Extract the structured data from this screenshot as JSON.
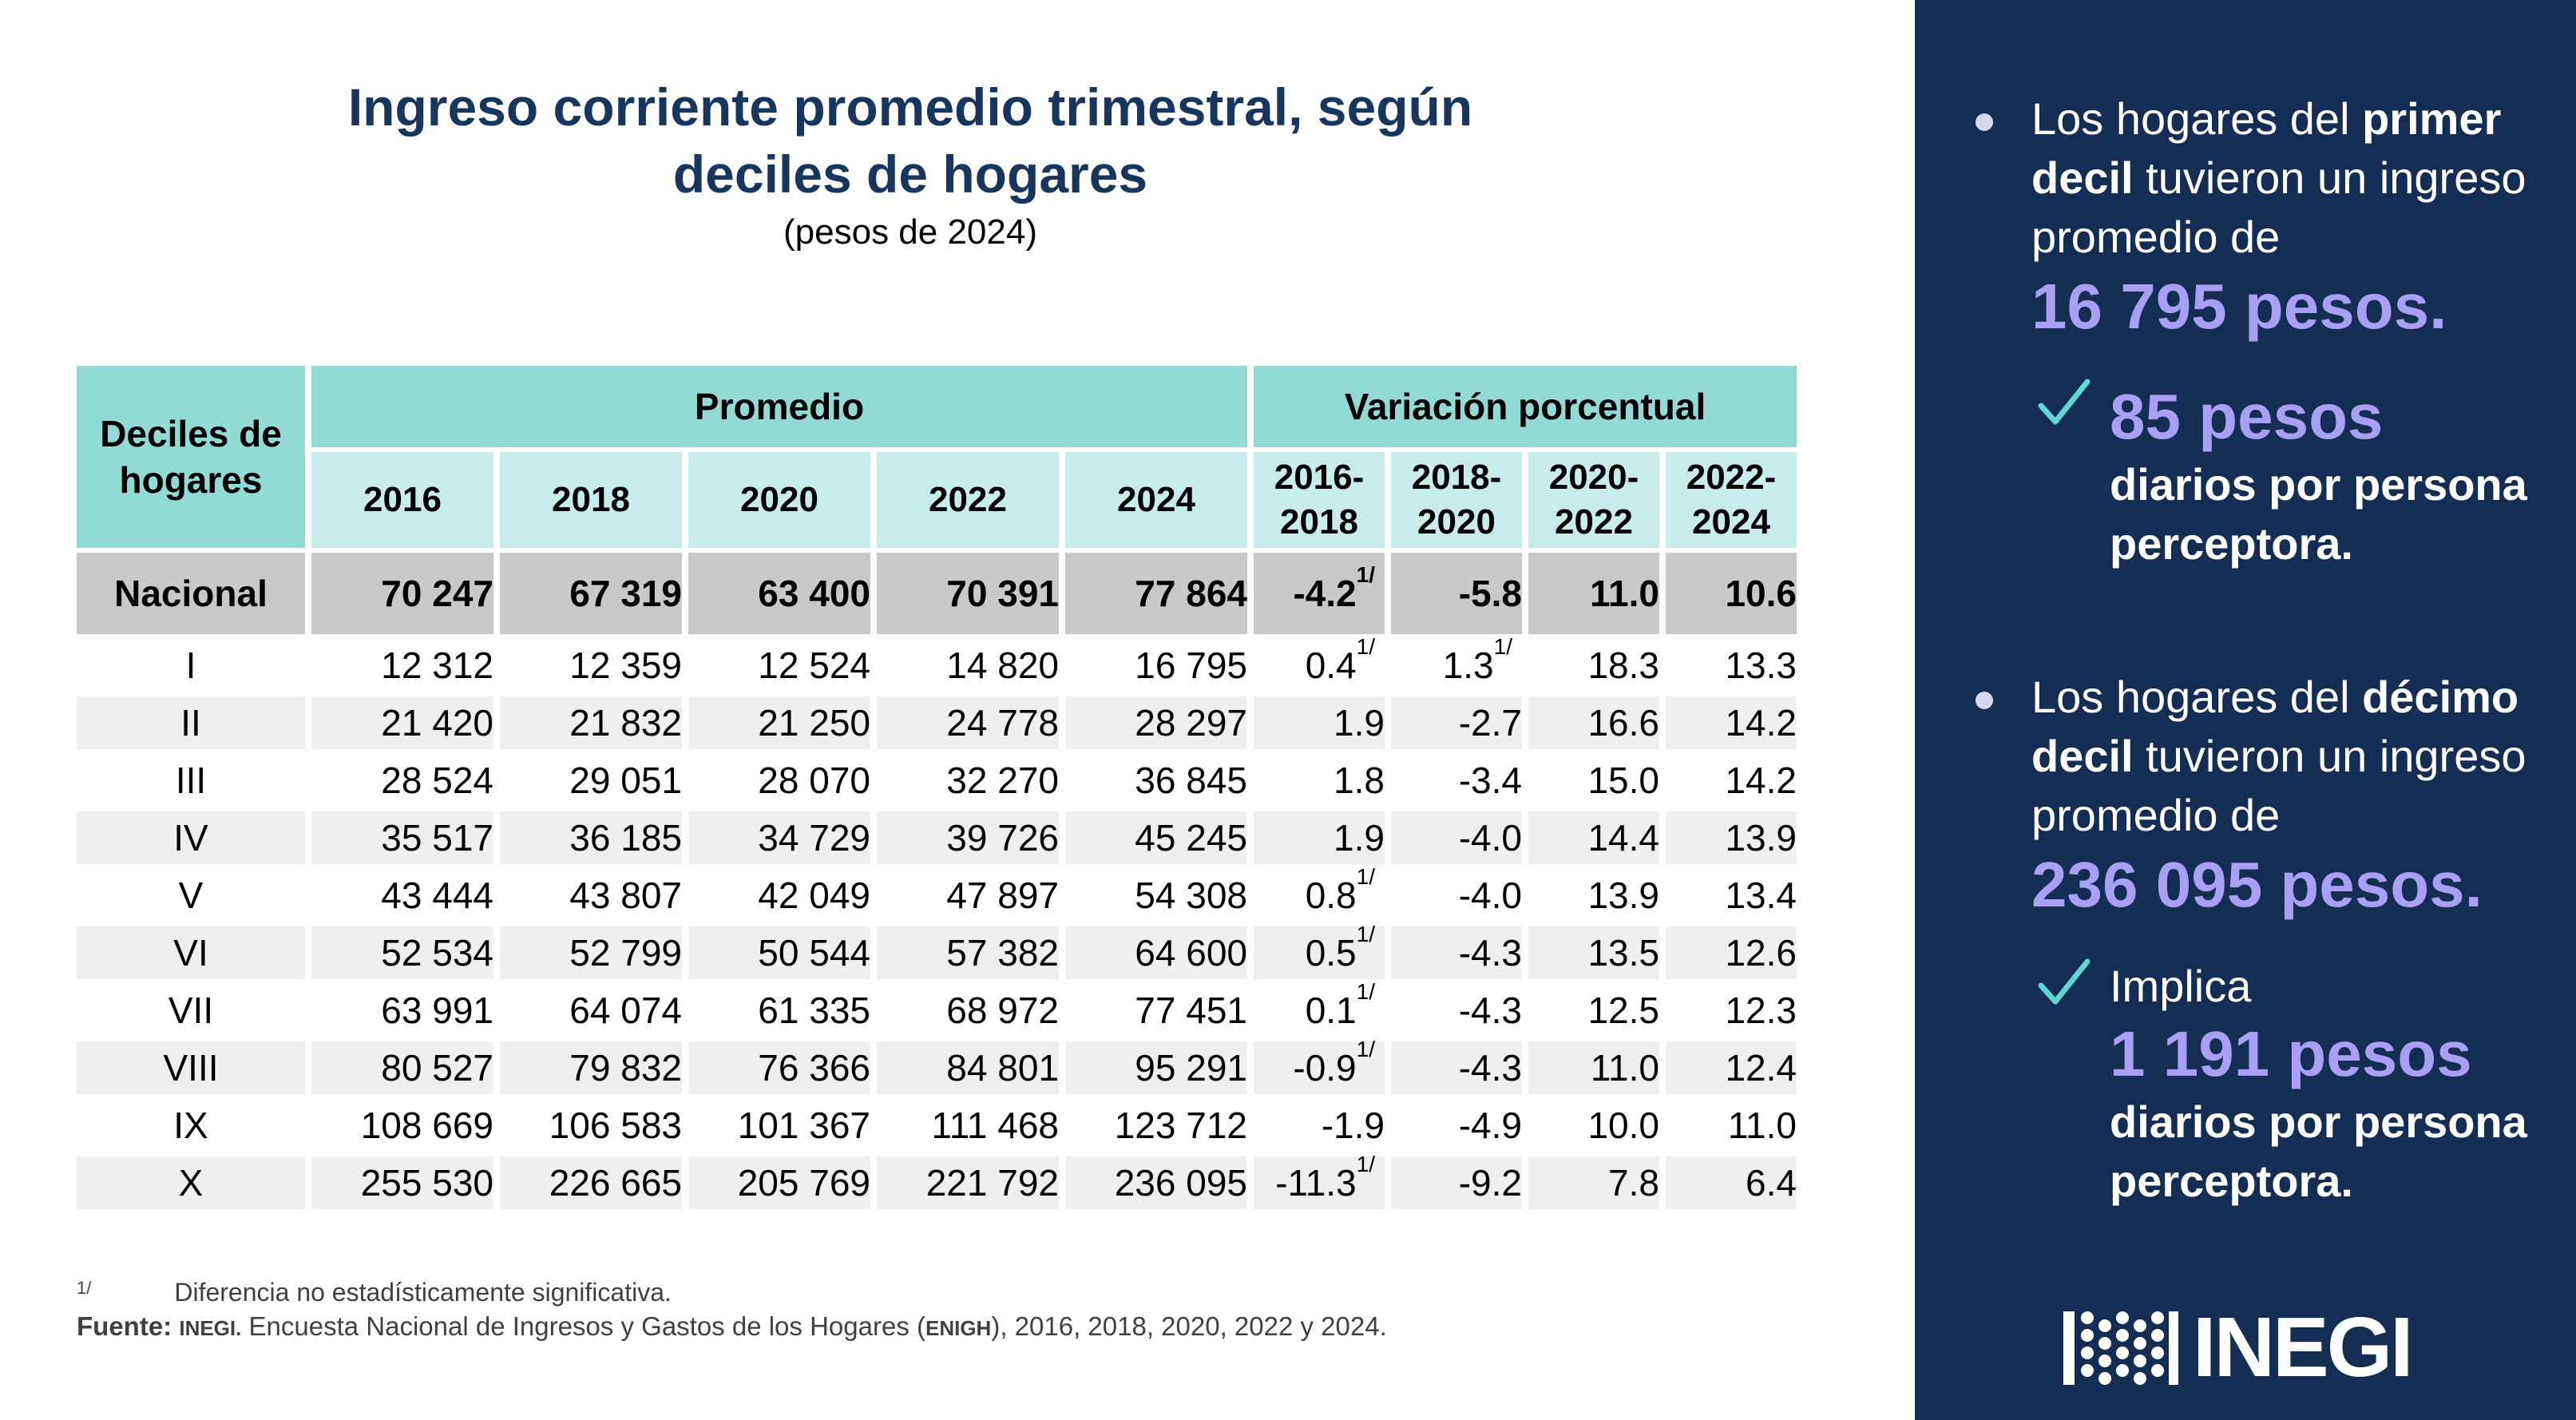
{
  "title": {
    "line1": "Ingreso corriente promedio trimestral, según",
    "line2": "deciles de hogares",
    "subtitle": "(pesos de 2024)"
  },
  "table": {
    "stub_header": "Deciles de hogares",
    "group_promedio": "Promedio",
    "group_variacion": "Variación porcentual",
    "years": [
      "2016",
      "2018",
      "2020",
      "2022",
      "2024"
    ],
    "periods": [
      "2016-\n2018",
      "2018-\n2020",
      "2020-\n2022",
      "2022-\n2024"
    ],
    "national": {
      "label": "Nacional",
      "values": [
        "70 247",
        "67 319",
        "63 400",
        "70 391",
        "77 864"
      ],
      "variations": [
        {
          "v": "-4.2",
          "note": "1/"
        },
        {
          "v": "-5.8",
          "note": ""
        },
        {
          "v": "11.0",
          "note": ""
        },
        {
          "v": "10.6",
          "note": ""
        }
      ]
    },
    "rows": [
      {
        "label": "I",
        "values": [
          "12 312",
          "12 359",
          "12 524",
          "14 820",
          "16 795"
        ],
        "variations": [
          {
            "v": "0.4",
            "note": "1/"
          },
          {
            "v": "1.3",
            "note": "1/"
          },
          {
            "v": "18.3",
            "note": ""
          },
          {
            "v": "13.3",
            "note": ""
          }
        ]
      },
      {
        "label": "II",
        "values": [
          "21 420",
          "21 832",
          "21 250",
          "24 778",
          "28 297"
        ],
        "variations": [
          {
            "v": "1.9",
            "note": ""
          },
          {
            "v": "-2.7",
            "note": ""
          },
          {
            "v": "16.6",
            "note": ""
          },
          {
            "v": "14.2",
            "note": ""
          }
        ]
      },
      {
        "label": "III",
        "values": [
          "28 524",
          "29 051",
          "28 070",
          "32 270",
          "36 845"
        ],
        "variations": [
          {
            "v": "1.8",
            "note": ""
          },
          {
            "v": "-3.4",
            "note": ""
          },
          {
            "v": "15.0",
            "note": ""
          },
          {
            "v": "14.2",
            "note": ""
          }
        ]
      },
      {
        "label": "IV",
        "values": [
          "35 517",
          "36 185",
          "34 729",
          "39 726",
          "45 245"
        ],
        "variations": [
          {
            "v": "1.9",
            "note": ""
          },
          {
            "v": "-4.0",
            "note": ""
          },
          {
            "v": "14.4",
            "note": ""
          },
          {
            "v": "13.9",
            "note": ""
          }
        ]
      },
      {
        "label": "V",
        "values": [
          "43 444",
          "43 807",
          "42 049",
          "47 897",
          "54 308"
        ],
        "variations": [
          {
            "v": "0.8",
            "note": "1/"
          },
          {
            "v": "-4.0",
            "note": ""
          },
          {
            "v": "13.9",
            "note": ""
          },
          {
            "v": "13.4",
            "note": ""
          }
        ]
      },
      {
        "label": "VI",
        "values": [
          "52 534",
          "52 799",
          "50 544",
          "57 382",
          "64 600"
        ],
        "variations": [
          {
            "v": "0.5",
            "note": "1/"
          },
          {
            "v": "-4.3",
            "note": ""
          },
          {
            "v": "13.5",
            "note": ""
          },
          {
            "v": "12.6",
            "note": ""
          }
        ]
      },
      {
        "label": "VII",
        "values": [
          "63 991",
          "64 074",
          "61 335",
          "68 972",
          "77 451"
        ],
        "variations": [
          {
            "v": "0.1",
            "note": "1/"
          },
          {
            "v": "-4.3",
            "note": ""
          },
          {
            "v": "12.5",
            "note": ""
          },
          {
            "v": "12.3",
            "note": ""
          }
        ]
      },
      {
        "label": "VIII",
        "values": [
          "80 527",
          "79 832",
          "76 366",
          "84 801",
          "95 291"
        ],
        "variations": [
          {
            "v": "-0.9",
            "note": "1/"
          },
          {
            "v": "-4.3",
            "note": ""
          },
          {
            "v": "11.0",
            "note": ""
          },
          {
            "v": "12.4",
            "note": ""
          }
        ]
      },
      {
        "label": "IX",
        "values": [
          "108 669",
          "106 583",
          "101 367",
          "111 468",
          "123 712"
        ],
        "variations": [
          {
            "v": "-1.9",
            "note": ""
          },
          {
            "v": "-4.9",
            "note": ""
          },
          {
            "v": "10.0",
            "note": ""
          },
          {
            "v": "11.0",
            "note": ""
          }
        ]
      },
      {
        "label": "X",
        "values": [
          "255 530",
          "226 665",
          "205 769",
          "221 792",
          "236 095"
        ],
        "variations": [
          {
            "v": "-11.3",
            "note": "1/"
          },
          {
            "v": "-9.2",
            "note": ""
          },
          {
            "v": "7.8",
            "note": ""
          },
          {
            "v": "6.4",
            "note": ""
          }
        ]
      }
    ]
  },
  "footnotes": {
    "mark": "1/",
    "note_text": "Diferencia no estadísticamente significativa.",
    "source_label": "Fuente:",
    "source_org": "INEGI.",
    "source_text_a": " Encuesta Nacional de Ingresos y Gastos de los Hogares (",
    "source_abbr": "ENIGH",
    "source_text_b": "), 2016, 2018, 2020, 2022 y 2024."
  },
  "side": {
    "bullet1": {
      "pre": "Los hogares del ",
      "bold": "primer decil",
      "post": " tuvieron un ingreso promedio de",
      "highlight": "16 795 pesos."
    },
    "check1": {
      "lead": "85 pesos",
      "text": "diarios por persona perceptora."
    },
    "bullet2": {
      "pre": "Los hogares del ",
      "bold": "décimo decil",
      "post": " tuvieron un ingreso promedio de",
      "highlight": "236 095 pesos."
    },
    "check2": {
      "intro": "Implica",
      "lead": "1 191 pesos",
      "text": "diarios por persona perceptora."
    },
    "logo_text": "INEGI"
  },
  "colors": {
    "title": "#17365d",
    "header_dark": "#93dad4",
    "header_light": "#c7ecea",
    "national_row": "#c9c9c9",
    "shade_row": "#efefef",
    "panel": "#132e52",
    "highlight": "#a9a0f5",
    "check": "#5fd6cf"
  }
}
